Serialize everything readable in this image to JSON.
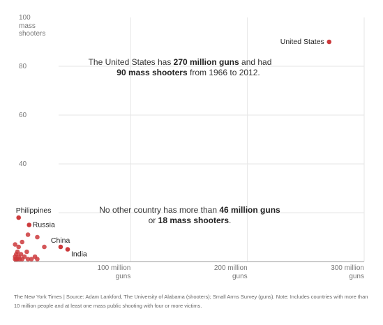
{
  "chart_data": {
    "type": "scatter",
    "title": "",
    "xlabel": "",
    "ylabel": "",
    "xlim": [
      0,
      300
    ],
    "ylim": [
      0,
      100
    ],
    "x_unit": "million guns",
    "y_ticks": [
      {
        "value": 100,
        "label": "100",
        "sublabel": "mass\nshooters"
      },
      {
        "value": 80,
        "label": "80"
      },
      {
        "value": 60,
        "label": "60"
      },
      {
        "value": 40,
        "label": "40"
      }
    ],
    "x_ticks": [
      {
        "value": 100,
        "label": "100 million",
        "sublabel": "guns"
      },
      {
        "value": 200,
        "label": "200 million",
        "sublabel": "guns"
      },
      {
        "value": 300,
        "label": "300 million",
        "sublabel": "guns"
      }
    ],
    "grid": true,
    "labeled_points": [
      {
        "name": "United States",
        "x": 270,
        "y": 90
      },
      {
        "name": "Philippines",
        "x": 4,
        "y": 18
      },
      {
        "name": "Russia",
        "x": 13,
        "y": 15
      },
      {
        "name": "China",
        "x": 40,
        "y": 6
      },
      {
        "name": "India",
        "x": 46,
        "y": 5
      }
    ],
    "points": [
      {
        "x": 12,
        "y": 11
      },
      {
        "x": 20,
        "y": 10
      },
      {
        "x": 7,
        "y": 8
      },
      {
        "x": 1,
        "y": 7
      },
      {
        "x": 4,
        "y": 6
      },
      {
        "x": 26,
        "y": 6
      },
      {
        "x": 3,
        "y": 4
      },
      {
        "x": 11,
        "y": 4
      },
      {
        "x": 2,
        "y": 3
      },
      {
        "x": 6,
        "y": 3
      },
      {
        "x": 1,
        "y": 2
      },
      {
        "x": 9,
        "y": 2
      },
      {
        "x": 18,
        "y": 2
      },
      {
        "x": 2,
        "y": 1
      },
      {
        "x": 5,
        "y": 1
      },
      {
        "x": 12,
        "y": 1
      },
      {
        "x": 20,
        "y": 1
      },
      {
        "x": 1,
        "y": 1
      },
      {
        "x": 3,
        "y": 1
      },
      {
        "x": 7,
        "y": 1
      },
      {
        "x": 15,
        "y": 1
      },
      {
        "x": 2,
        "y": 1
      },
      {
        "x": 4,
        "y": 2
      }
    ],
    "annotations": [
      {
        "parts": [
          {
            "text": "The United States has ",
            "bold": false
          },
          {
            "text": "270 million guns",
            "bold": true
          },
          {
            "text": " and had",
            "bold": false
          }
        ]
      },
      {
        "parts": [
          {
            "text": "90 mass shooters",
            "bold": true
          },
          {
            "text": " from 1966 to 2012.",
            "bold": false
          }
        ]
      },
      {
        "parts": [
          {
            "text": "No other country has more than ",
            "bold": false
          },
          {
            "text": "46 million guns",
            "bold": true
          }
        ]
      },
      {
        "parts": [
          {
            "text": "or ",
            "bold": false
          },
          {
            "text": "18 mass shooters",
            "bold": true
          },
          {
            "text": ".",
            "bold": false
          }
        ]
      }
    ],
    "colors": {
      "point": "#cc3a3c",
      "grid": "#e6e6e6",
      "axis": "#999999"
    }
  },
  "footer": {
    "text": "The New York Times | Source: Adam Lankford, The University of Alabama (shooters); Small Arms Survey (guns). Note: Includes countries with more than 10 million people and at least one mass public shooting with four or more victims."
  }
}
